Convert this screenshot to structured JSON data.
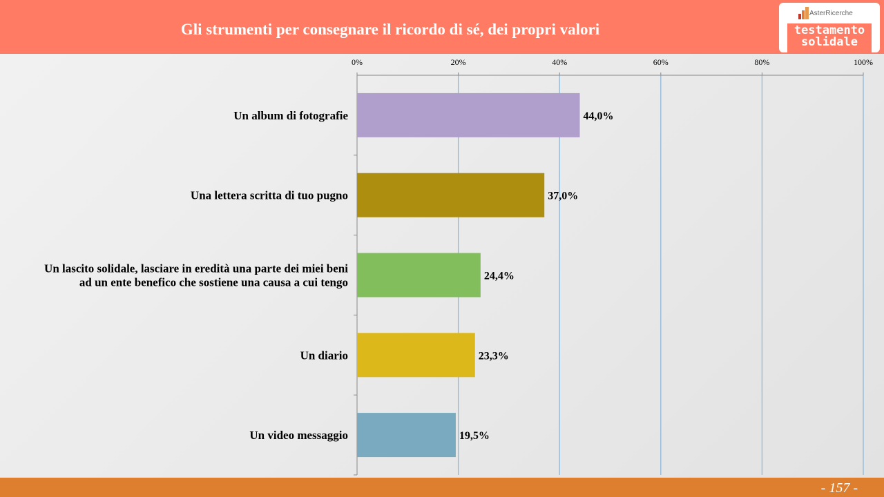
{
  "header": {
    "title": "Gli strumenti per consegnare il ricordo di sé, dei propri valori"
  },
  "logo": {
    "brand": "AsterRicerche",
    "line1": "testamento",
    "line2": "solidale"
  },
  "footer": {
    "page": "- 157 -"
  },
  "chart_data": {
    "type": "bar",
    "orientation": "horizontal",
    "categories": [
      [
        "Un album di fotografie"
      ],
      [
        "Una lettera scritta di tuo pugno"
      ],
      [
        "Un lascito solidale, lasciare in eredità una parte dei miei beni",
        "ad un ente benefico che sostiene una causa a cui tengo"
      ],
      [
        "Un diario"
      ],
      [
        "Un video messaggio"
      ]
    ],
    "values": [
      44.0,
      37.0,
      24.4,
      23.3,
      19.5
    ],
    "labels": [
      "44,0%",
      "37,0%",
      "24,4%",
      "23,3%",
      "19,5%"
    ],
    "colors": [
      "#b09fcc",
      "#ae8e0e",
      "#82be5b",
      "#dcb81b",
      "#79aac0"
    ],
    "xlim": [
      0,
      100
    ],
    "ticks": [
      "0%",
      "20%",
      "40%",
      "60%",
      "80%",
      "100%"
    ],
    "grid": true
  }
}
